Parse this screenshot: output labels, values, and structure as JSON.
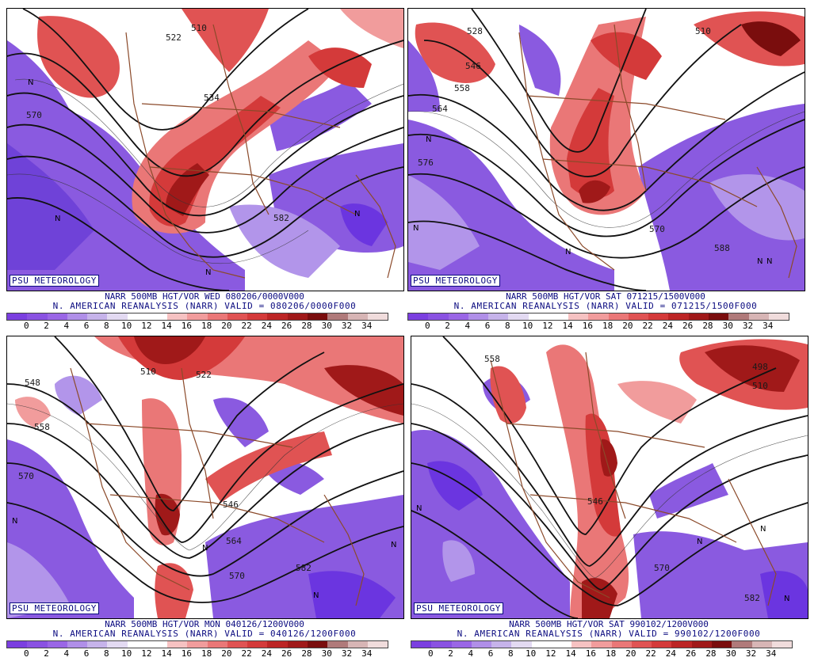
{
  "colorbar": {
    "ticks": [
      "0",
      "2",
      "4",
      "6",
      "8",
      "10",
      "12",
      "14",
      "16",
      "18",
      "20",
      "22",
      "24",
      "26",
      "28",
      "30",
      "32",
      "34"
    ],
    "colors": [
      "#7b3fe0",
      "#8a52e2",
      "#9a66e6",
      "#b08fe8",
      "#c6b3ea",
      "#e3daf2",
      "#ffffff",
      "#ffffff",
      "#f6c2c2",
      "#f19c9c",
      "#ea7777",
      "#e05353",
      "#d43a3a",
      "#bc2525",
      "#a01919",
      "#7a0d0d",
      "#b07a7a",
      "#d7b5b5",
      "#f0dcdc"
    ]
  },
  "credit": "PSU METEOROLOGY",
  "panels": [
    {
      "caption_line1": "NARR 500MB HGT/VOR WED 080206/0000V000",
      "caption_line2": "N. AMERICAN REANALYSIS (NARR) VALID = 080206/0000F000",
      "contour_labels": [
        "522",
        "510",
        "534",
        "570",
        "582"
      ],
      "vorticity_min_marker": "N"
    },
    {
      "caption_line1": "NARR 500MB HGT/VOR SAT 071215/1500V000",
      "caption_line2": "N. AMERICAN REANALYSIS (NARR) VALID = 071215/1500F000",
      "contour_labels": [
        "528",
        "510",
        "546",
        "558",
        "564",
        "576",
        "570",
        "588"
      ],
      "vorticity_min_marker": "N"
    },
    {
      "caption_line1": "NARR 500MB HGT/VOR MON 040126/1200V000",
      "caption_line2": "N. AMERICAN REANALYSIS (NARR) VALID = 040126/1200F000",
      "contour_labels": [
        "510",
        "522",
        "548",
        "558",
        "570",
        "546",
        "564",
        "570",
        "582"
      ],
      "vorticity_min_marker": "N"
    },
    {
      "caption_line1": "NARR 500MB HGT/VOR SAT 990102/1200V000",
      "caption_line2": "N. AMERICAN REANALYSIS (NARR) VALID = 990102/1200F000",
      "contour_labels": [
        "558",
        "498",
        "510",
        "546",
        "570",
        "582"
      ],
      "vorticity_min_marker": "N"
    }
  ]
}
